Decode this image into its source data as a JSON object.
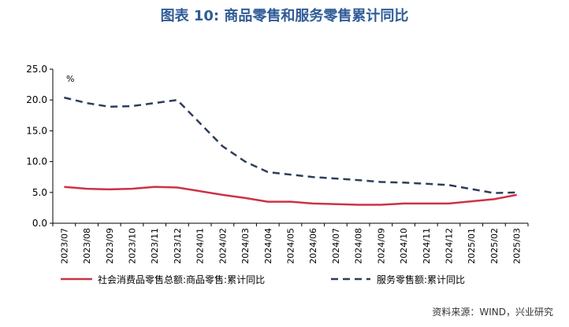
{
  "title": "图表 10: 商品零售和服务零售累计同比",
  "source": "资料来源：WIND，兴业研究",
  "colors": {
    "retail": "#cc3344",
    "service": "#2c3e5a",
    "title": "#2f5b97"
  },
  "chart_data": {
    "type": "line",
    "ylabel": "%",
    "ylim": [
      0,
      25
    ],
    "yticks": [
      "0.0",
      "5.0",
      "10.0",
      "15.0",
      "20.0",
      "25.0"
    ],
    "grid": false,
    "legend": "bottom",
    "categories": [
      "2023/07",
      "2023/08",
      "2023/09",
      "2023/10",
      "2023/11",
      "2023/12",
      "2024/01",
      "2024/02",
      "2024/03",
      "2024/04",
      "2024/05",
      "2024/06",
      "2024/07",
      "2024/08",
      "2024/09",
      "2024/10",
      "2024/11",
      "2024/12",
      "2025/01",
      "2025/02",
      "2025/03"
    ],
    "series": [
      {
        "name": "社会消费品零售总额:商品零售:累计同比",
        "style": "solid",
        "color": "#cc3344",
        "values": [
          5.9,
          5.6,
          5.5,
          5.6,
          5.9,
          5.8,
          null,
          4.6,
          4.1,
          3.5,
          3.5,
          3.2,
          null,
          3.0,
          3.0,
          3.2,
          3.2,
          3.2,
          null,
          3.9,
          4.6
        ]
      },
      {
        "name": "服务零售额:累计同比",
        "style": "dashed",
        "color": "#2c3e5a",
        "values": [
          20.4,
          19.5,
          18.9,
          19.0,
          19.5,
          20.0,
          null,
          12.5,
          10.0,
          8.3,
          7.9,
          7.5,
          null,
          7.0,
          6.7,
          6.6,
          6.4,
          6.2,
          null,
          4.9,
          5.0
        ]
      }
    ]
  }
}
